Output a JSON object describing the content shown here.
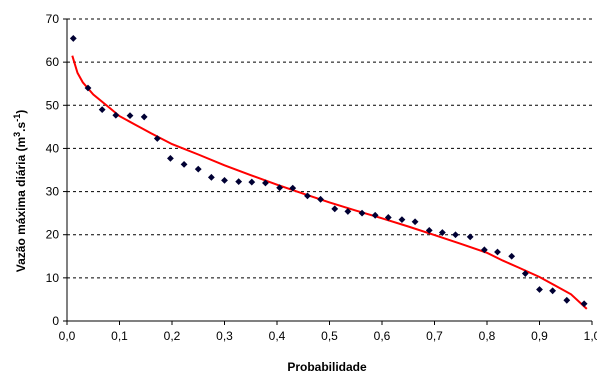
{
  "chart_data": {
    "type": "scatter",
    "xlabel": "Probabilidade",
    "ylabel_main": "Vazão máxima diária (m",
    "ylabel_sup1": "3",
    "ylabel_mid": ".s",
    "ylabel_sup2": "-1",
    "ylabel_end": ")",
    "xlim": [
      0,
      1
    ],
    "ylim": [
      0,
      70
    ],
    "x_ticks": [
      0,
      0.1,
      0.2,
      0.3,
      0.4,
      0.5,
      0.6,
      0.7,
      0.8,
      0.9,
      1.0
    ],
    "x_tick_labels": [
      "0,0",
      "0,1",
      "0,2",
      "0,3",
      "0,4",
      "0,5",
      "0,6",
      "0,7",
      "0,8",
      "0,9",
      "1,0"
    ],
    "y_ticks": [
      0,
      10,
      20,
      30,
      40,
      50,
      60,
      70
    ],
    "y_tick_labels": [
      "0",
      "10",
      "20",
      "30",
      "40",
      "50",
      "60",
      "70"
    ],
    "grid": true,
    "colors": {
      "points": "#000033",
      "curve": "#ff0000"
    },
    "series": [
      {
        "type": "scatter",
        "x": [
          0.012,
          0.04,
          0.067,
          0.093,
          0.12,
          0.147,
          0.172,
          0.197,
          0.223,
          0.25,
          0.275,
          0.3,
          0.327,
          0.352,
          0.378,
          0.405,
          0.43,
          0.458,
          0.483,
          0.51,
          0.535,
          0.562,
          0.587,
          0.612,
          0.638,
          0.663,
          0.69,
          0.715,
          0.74,
          0.768,
          0.795,
          0.82,
          0.847,
          0.873,
          0.9,
          0.925,
          0.952,
          0.985
        ],
        "y": [
          65.5,
          54,
          49,
          47.7,
          47.6,
          47.3,
          42.3,
          37.7,
          36.3,
          35.2,
          33.3,
          32.6,
          32.3,
          32.2,
          32.0,
          30.9,
          30.8,
          29.0,
          28.2,
          26.0,
          25.4,
          25.0,
          24.5,
          24.0,
          23.5,
          23.0,
          21.0,
          20.5,
          20.0,
          19.5,
          16.5,
          16.0,
          15.0,
          11.0,
          7.3,
          7.0,
          4.8,
          4.0
        ]
      },
      {
        "type": "line",
        "x": [
          0.01,
          0.02,
          0.03,
          0.05,
          0.08,
          0.1,
          0.13,
          0.16,
          0.2,
          0.25,
          0.3,
          0.35,
          0.4,
          0.45,
          0.5,
          0.55,
          0.6,
          0.65,
          0.7,
          0.75,
          0.8,
          0.83,
          0.86,
          0.9,
          0.93,
          0.96,
          0.99
        ],
        "y": [
          61.5,
          57.5,
          55.3,
          52.5,
          49.5,
          47.5,
          45.5,
          43.5,
          41.0,
          38.6,
          36.1,
          33.8,
          31.6,
          29.5,
          27.5,
          25.6,
          23.8,
          21.9,
          19.9,
          17.9,
          15.8,
          14.0,
          12.4,
          10.2,
          8.2,
          6.2,
          2.8
        ]
      }
    ]
  }
}
